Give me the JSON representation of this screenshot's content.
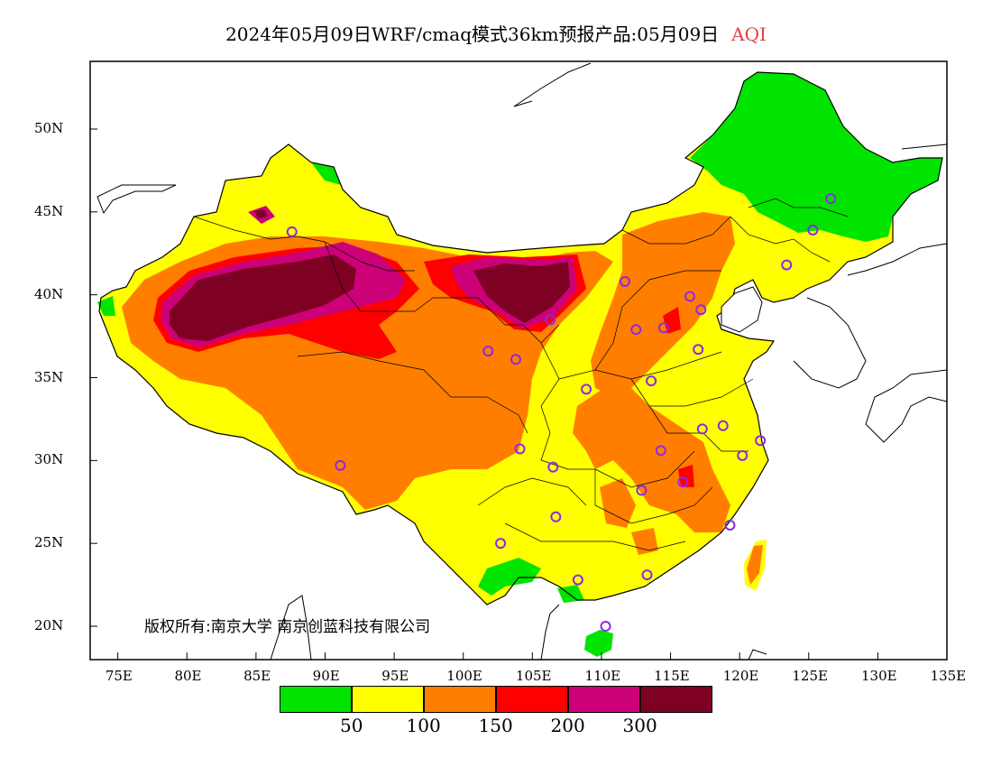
{
  "title": {
    "main": "2024年05月09日WRF/cmaq模式36km预报产品:05月09日",
    "variable": "AQI"
  },
  "copyright": "版权所有:南京大学 南京创蓝科技有限公司",
  "axes": {
    "y_ticks": [
      "50N",
      "45N",
      "40N",
      "35N",
      "30N",
      "25N",
      "20N"
    ],
    "x_ticks": [
      "75E",
      "80E",
      "85E",
      "90E",
      "95E",
      "100E",
      "105E",
      "110E",
      "115E",
      "120E",
      "125E",
      "130E",
      "135E"
    ],
    "lon_range": [
      73,
      135
    ],
    "lat_range": [
      18,
      54
    ]
  },
  "legend": {
    "colors": [
      "#00e400",
      "#ffff00",
      "#ff7e00",
      "#ff0000",
      "#cc0077",
      "#7e0023"
    ],
    "labels": [
      "50",
      "100",
      "150",
      "200",
      "300"
    ]
  },
  "monitor_sites": [
    {
      "lon": 87.6,
      "lat": 43.8
    },
    {
      "lon": 126.6,
      "lat": 45.8
    },
    {
      "lon": 125.3,
      "lat": 43.9
    },
    {
      "lon": 123.4,
      "lat": 41.8
    },
    {
      "lon": 111.7,
      "lat": 40.8
    },
    {
      "lon": 116.4,
      "lat": 39.9
    },
    {
      "lon": 117.2,
      "lat": 39.1
    },
    {
      "lon": 114.5,
      "lat": 38.0
    },
    {
      "lon": 112.5,
      "lat": 37.9
    },
    {
      "lon": 106.3,
      "lat": 38.5
    },
    {
      "lon": 101.8,
      "lat": 36.6
    },
    {
      "lon": 103.8,
      "lat": 36.1
    },
    {
      "lon": 117.0,
      "lat": 36.7
    },
    {
      "lon": 113.6,
      "lat": 34.8
    },
    {
      "lon": 108.9,
      "lat": 34.3
    },
    {
      "lon": 117.3,
      "lat": 31.9
    },
    {
      "lon": 118.8,
      "lat": 32.1
    },
    {
      "lon": 121.5,
      "lat": 31.2
    },
    {
      "lon": 120.2,
      "lat": 30.3
    },
    {
      "lon": 114.3,
      "lat": 30.6
    },
    {
      "lon": 104.1,
      "lat": 30.7
    },
    {
      "lon": 106.5,
      "lat": 29.6
    },
    {
      "lon": 91.1,
      "lat": 29.7
    },
    {
      "lon": 112.9,
      "lat": 28.2
    },
    {
      "lon": 115.9,
      "lat": 28.7
    },
    {
      "lon": 106.7,
      "lat": 26.6
    },
    {
      "lon": 102.7,
      "lat": 25.0
    },
    {
      "lon": 119.3,
      "lat": 26.1
    },
    {
      "lon": 113.3,
      "lat": 23.1
    },
    {
      "lon": 108.3,
      "lat": 22.8
    },
    {
      "lon": 110.3,
      "lat": 20.0
    }
  ]
}
